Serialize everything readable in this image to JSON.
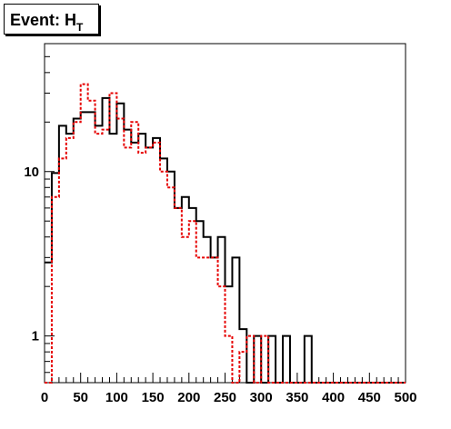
{
  "chart_data": {
    "type": "histogram-step",
    "title": "Event: H",
    "title_subscript": "T",
    "y_log": true,
    "xlim": [
      0,
      500
    ],
    "ylim": [
      0.52,
      60
    ],
    "x_ticks": [
      0,
      50,
      100,
      150,
      200,
      250,
      300,
      350,
      400,
      450,
      500
    ],
    "y_ticks": [
      1,
      10
    ],
    "bin_width": 10,
    "bin_edges_start": 0,
    "series": [
      {
        "style": "solid",
        "color": "#000000",
        "values": [
          2.8,
          9.8,
          19,
          17,
          21,
          23,
          23,
          19,
          28,
          17,
          26,
          18,
          15,
          17,
          14,
          16,
          12,
          10,
          6,
          7,
          6,
          5,
          4,
          3,
          4,
          2,
          3,
          1.1,
          0.5,
          1,
          0.5,
          1,
          0.5,
          1,
          0.5,
          0.5,
          1,
          0.5,
          0.5,
          0.5,
          0.5,
          0.5,
          0.5,
          0.5,
          0.5,
          0.5,
          0.5,
          0.5,
          0.5,
          0.5
        ]
      },
      {
        "style": "dashed",
        "color": "#e60000",
        "values": [
          0.5,
          7,
          12,
          16,
          20,
          34,
          27,
          17,
          18,
          30,
          21,
          14,
          20,
          13,
          14,
          15,
          10,
          8,
          6,
          4,
          5,
          3,
          3,
          3,
          2,
          1,
          0.5,
          0.8,
          1,
          0.5,
          1,
          0.5,
          0.5,
          0.5,
          0.5,
          0.5,
          0.5,
          0.5,
          0.5,
          0.5,
          0.5,
          0.5,
          0.5,
          0.5,
          0.5,
          0.5,
          0.5,
          0.5,
          0.5,
          0.5
        ]
      }
    ]
  }
}
